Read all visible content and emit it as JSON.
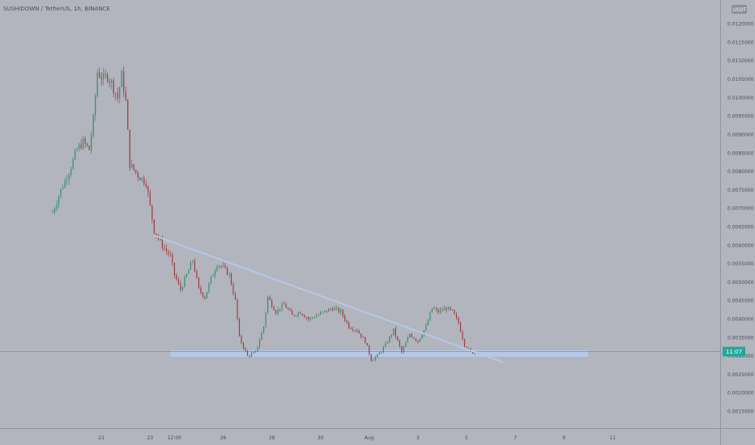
{
  "header": {
    "title": "SUSHIDOWN / TetherUS, 1h, BINANCE"
  },
  "price_scale": {
    "currency_badge": "USDT",
    "current_price_label": "11:07"
  },
  "colors": {
    "background": "#b2b5be",
    "bull": "#3a8a6e",
    "bear": "#9c3c40",
    "trendline": "#b6c8ea",
    "support_zone": "#b6c8ea",
    "current_price": "#26a69a",
    "axis_text": "#4a4e5a"
  },
  "chart_data": {
    "type": "candlestick",
    "symbol": "SUSHIDOWN / TetherUS",
    "interval": "1h",
    "exchange": "BINANCE",
    "grid": false,
    "y_axis": {
      "range": [
        0.00105,
        0.01265
      ],
      "ticks": [
        0.0015,
        0.002,
        0.0025,
        0.003,
        0.0035,
        0.004,
        0.0045,
        0.005,
        0.0055,
        0.006,
        0.0065,
        0.007,
        0.0075,
        0.008,
        0.0085,
        0.009,
        0.0095,
        0.01,
        0.0105,
        0.011,
        0.0115,
        0.012
      ],
      "tick_labels": [
        "0.0015000",
        "0.0020000",
        "0.0025000",
        "0.0030000",
        "0.0035000",
        "0.0040000",
        "0.0045000",
        "0.0050000",
        "0.0055000",
        "0.0060000",
        "0.0065000",
        "0.0070000",
        "0.0075000",
        "0.0080000",
        "0.0085000",
        "0.0090000",
        "0.0095000",
        "0.0100000",
        "0.0105000",
        "0.0110000",
        "0.0115000",
        "0.0120000"
      ]
    },
    "x_axis": {
      "range_hours": [
        -50,
        305
      ],
      "ticks": [
        {
          "label": "21",
          "hour": 0
        },
        {
          "label": "23",
          "hour": 24
        },
        {
          "label": "12:00",
          "hour": 36
        },
        {
          "label": "26",
          "hour": 60
        },
        {
          "label": "28",
          "hour": 84
        },
        {
          "label": "30",
          "hour": 108
        },
        {
          "label": "Aug",
          "hour": 132
        },
        {
          "label": "3",
          "hour": 156
        },
        {
          "label": "5",
          "hour": 180
        },
        {
          "label": "7",
          "hour": 204
        },
        {
          "label": "9",
          "hour": 228
        },
        {
          "label": "11",
          "hour": 252
        }
      ]
    },
    "close_path": [
      [
        -24,
        0.0069
      ],
      [
        -20,
        0.0075
      ],
      [
        -16,
        0.008
      ],
      [
        -12,
        0.0086
      ],
      [
        -9,
        0.0088
      ],
      [
        -6,
        0.0086
      ],
      [
        -4,
        0.0094
      ],
      [
        -2,
        0.0107
      ],
      [
        1,
        0.0105
      ],
      [
        3,
        0.0106
      ],
      [
        5,
        0.0104
      ],
      [
        8,
        0.01
      ],
      [
        10,
        0.0106
      ],
      [
        12,
        0.0099
      ],
      [
        14,
        0.0082
      ],
      [
        18,
        0.0079
      ],
      [
        22,
        0.0077
      ],
      [
        26,
        0.0064
      ],
      [
        30,
        0.006
      ],
      [
        34,
        0.0057
      ],
      [
        36,
        0.0052
      ],
      [
        39,
        0.0048
      ],
      [
        42,
        0.0052
      ],
      [
        45,
        0.0056
      ],
      [
        48,
        0.0048
      ],
      [
        51,
        0.0046
      ],
      [
        54,
        0.0051
      ],
      [
        57,
        0.0055
      ],
      [
        60,
        0.0054
      ],
      [
        63,
        0.0052
      ],
      [
        66,
        0.0045
      ],
      [
        68,
        0.0035
      ],
      [
        72,
        0.003
      ],
      [
        76,
        0.0031
      ],
      [
        80,
        0.0038
      ],
      [
        82,
        0.0046
      ],
      [
        86,
        0.0042
      ],
      [
        90,
        0.0044
      ],
      [
        94,
        0.0041
      ],
      [
        98,
        0.0042
      ],
      [
        102,
        0.004
      ],
      [
        106,
        0.0041
      ],
      [
        110,
        0.0042
      ],
      [
        114,
        0.0043
      ],
      [
        118,
        0.0042
      ],
      [
        122,
        0.0038
      ],
      [
        126,
        0.0037
      ],
      [
        130,
        0.0034
      ],
      [
        133,
        0.0029
      ],
      [
        136,
        0.003
      ],
      [
        140,
        0.0033
      ],
      [
        144,
        0.0037
      ],
      [
        148,
        0.0031
      ],
      [
        152,
        0.0036
      ],
      [
        156,
        0.0034
      ],
      [
        160,
        0.0038
      ],
      [
        163,
        0.0043
      ],
      [
        166,
        0.0042
      ],
      [
        170,
        0.0043
      ],
      [
        173,
        0.0042
      ],
      [
        176,
        0.0039
      ],
      [
        179,
        0.0033
      ],
      [
        182,
        0.0031
      ],
      [
        184,
        0.0031
      ]
    ],
    "drawings": {
      "trendline": {
        "from": [
          26,
          0.00627
        ],
        "to": [
          198,
          0.00283
        ]
      },
      "support_zone": {
        "from_hour": 34,
        "to_hour": 240,
        "price_low": 0.00298,
        "price_high": 0.00316
      }
    },
    "current_price": {
      "price": 0.00312,
      "label": "11:07"
    }
  }
}
